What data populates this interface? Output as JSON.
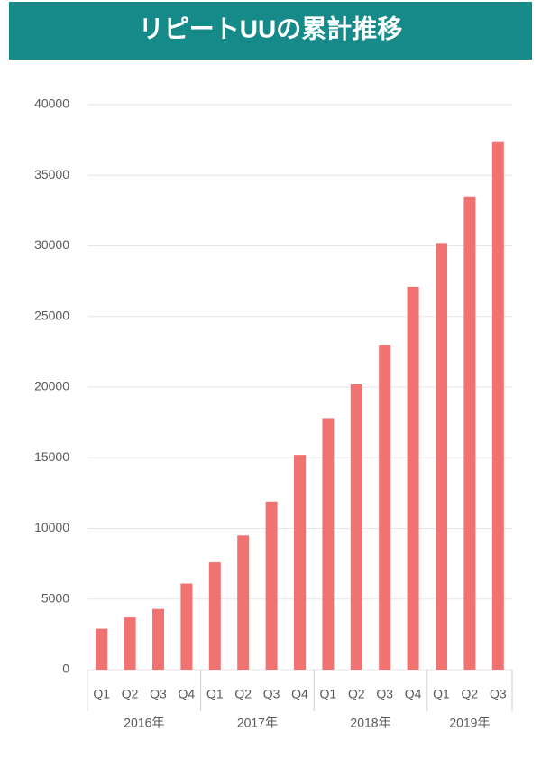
{
  "chart_data": {
    "type": "bar",
    "title": "リピートUUの累計推移",
    "color": "#f07372",
    "groups": [
      {
        "name": "2016年",
        "categories": [
          "Q1",
          "Q2",
          "Q3",
          "Q4"
        ],
        "values": [
          2900,
          3700,
          4300,
          6100
        ]
      },
      {
        "name": "2017年",
        "categories": [
          "Q1",
          "Q2",
          "Q3",
          "Q4"
        ],
        "values": [
          7600,
          9500,
          11900,
          15200
        ]
      },
      {
        "name": "2018年",
        "categories": [
          "Q1",
          "Q2",
          "Q3",
          "Q4"
        ],
        "values": [
          17800,
          20200,
          23000,
          27100
        ]
      },
      {
        "name": "2019年",
        "categories": [
          "Q1",
          "Q2",
          "Q3"
        ],
        "values": [
          30200,
          33500,
          37400
        ]
      }
    ],
    "ylim": [
      0,
      40000
    ],
    "yticks": [
      0,
      5000,
      10000,
      15000,
      20000,
      25000,
      30000,
      35000,
      40000
    ],
    "grid": true
  }
}
